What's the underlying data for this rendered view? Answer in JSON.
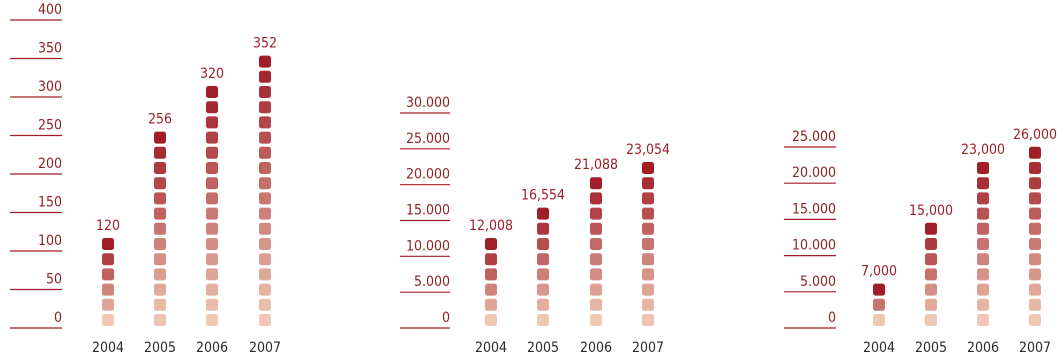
{
  "chart_data": [
    {
      "type": "bar",
      "categories": [
        "2004",
        "2005",
        "2006",
        "2007"
      ],
      "values": [
        120,
        256,
        320,
        352
      ],
      "value_labels": [
        "120",
        "256",
        "320",
        "352"
      ],
      "y_ticks": [
        0,
        50,
        100,
        150,
        200,
        250,
        300,
        350,
        400
      ],
      "y_tick_labels": [
        "0",
        "50",
        "100",
        "150",
        "200",
        "250",
        "300",
        "350",
        "400"
      ],
      "ylim": [
        0,
        400
      ],
      "grid": false,
      "title": "",
      "xlabel": "",
      "ylabel": ""
    },
    {
      "type": "bar",
      "categories": [
        "2004",
        "2005",
        "2006",
        "2007"
      ],
      "values": [
        12008,
        16554,
        21088,
        23054
      ],
      "value_labels": [
        "12,008",
        "16,554",
        "21,088",
        "23,054"
      ],
      "y_ticks": [
        0,
        5000,
        10000,
        15000,
        20000,
        25000,
        30000
      ],
      "y_tick_labels": [
        "0",
        "5.000",
        "10.000",
        "15.000",
        "20.000",
        "25.000",
        "30.000"
      ],
      "ylim": [
        0,
        30000
      ],
      "grid": false,
      "title": "",
      "xlabel": "",
      "ylabel": ""
    },
    {
      "type": "bar",
      "categories": [
        "2004",
        "2005",
        "2006",
        "2007"
      ],
      "values": [
        7000,
        15000,
        23000,
        26000
      ],
      "value_labels": [
        "7,000",
        "15,000",
        "23,000",
        "26,000"
      ],
      "y_ticks": [
        0,
        5000,
        10000,
        15000,
        20000,
        25000
      ],
      "y_tick_labels": [
        "0",
        "5.000",
        "10.000",
        "15.000",
        "20.000",
        "25.000"
      ],
      "ylim": [
        0,
        25000
      ],
      "grid": false,
      "title": "",
      "xlabel": "",
      "ylabel": ""
    }
  ],
  "colors": {
    "accent": "#a01e28",
    "block_top": "#a01e28",
    "block_bottom": "#edc7b3",
    "tick_text": "#8c2323",
    "year_text": "#2a2a2a"
  }
}
